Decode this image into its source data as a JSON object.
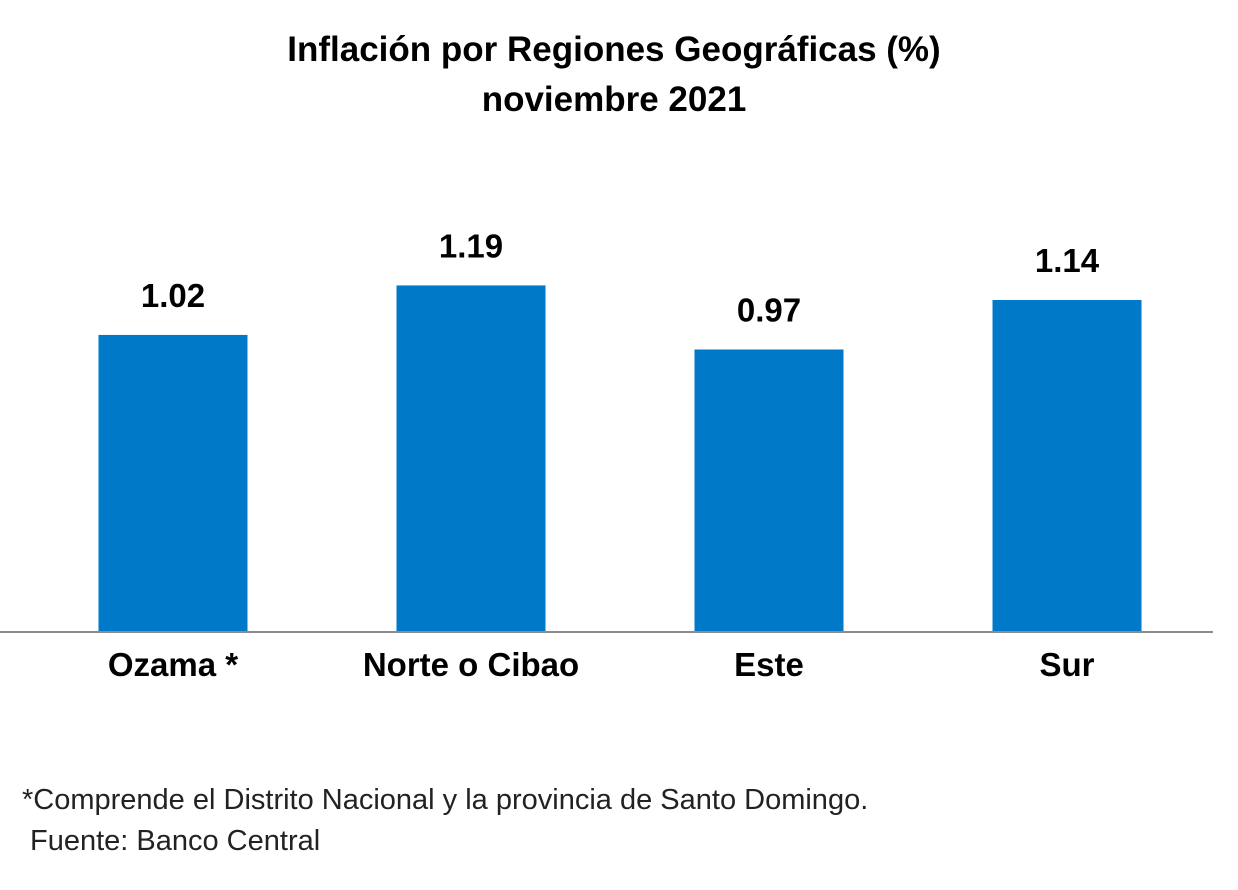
{
  "chart_data": {
    "type": "bar",
    "title": "Inflación por Regiones Geográficas (%)",
    "subtitle": "noviembre 2021",
    "categories": [
      "Ozama *",
      "Norte o Cibao",
      "Este",
      "Sur"
    ],
    "values": [
      1.02,
      1.19,
      0.97,
      1.14
    ],
    "data_labels": [
      "1.02",
      "1.19",
      "0.97",
      "1.14"
    ],
    "xlabel": "",
    "ylabel": "",
    "ylim": [
      0,
      2.17
    ],
    "grid": false,
    "bar_color": "#0079C8",
    "axis_color": "#8c8c8c"
  },
  "footnotes": {
    "note": "*Comprende el Distrito Nacional y la provincia de Santo Domingo.",
    "source": "Fuente: Banco Central"
  }
}
